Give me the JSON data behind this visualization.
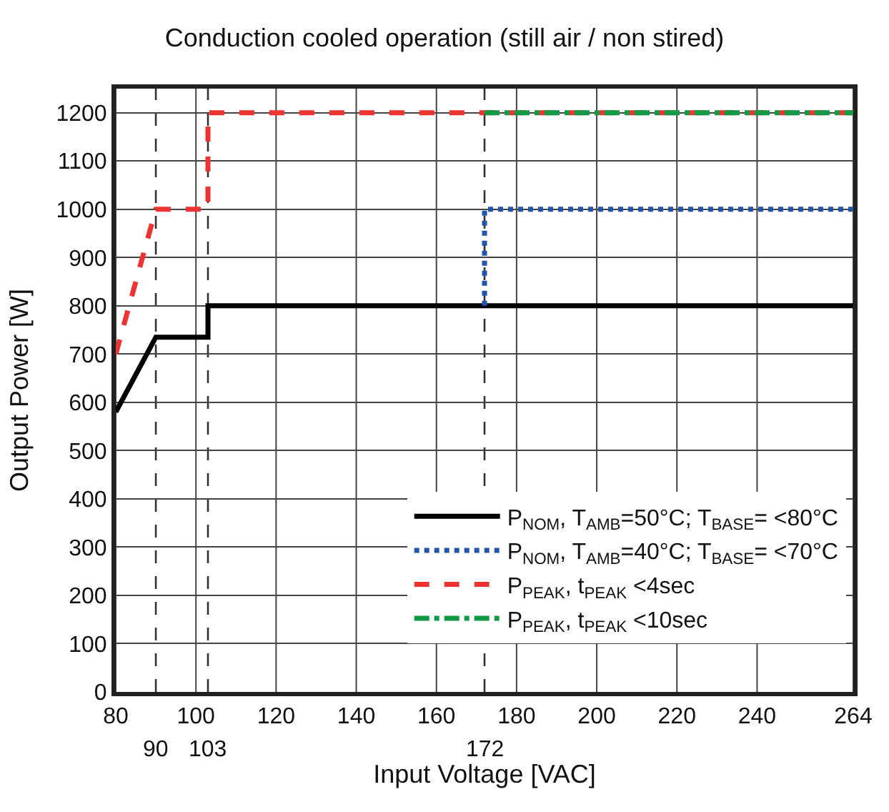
{
  "chart_data": {
    "type": "line",
    "title": "Conduction cooled operation (still air / non stired)",
    "xlabel": "Input Voltage [VAC]",
    "ylabel": "Output Power [W]",
    "xlim": [
      80,
      264
    ],
    "xticks": [
      80,
      100,
      120,
      140,
      160,
      180,
      200,
      220,
      240,
      264
    ],
    "ylim": [
      0,
      1250
    ],
    "yticks": [
      0,
      100,
      200,
      300,
      400,
      500,
      600,
      700,
      800,
      900,
      1000,
      1100,
      1200
    ],
    "grid": true,
    "legend": "bottom right",
    "ref_lines": [
      {
        "axis": "x",
        "value": 90,
        "label": "90",
        "line_style": "dashed",
        "color": "#333333"
      },
      {
        "axis": "x",
        "value": 103,
        "label": "103",
        "line_style": "dashed",
        "color": "#333333"
      },
      {
        "axis": "x",
        "value": 172,
        "label": "172",
        "line_style": "dashed",
        "color": "#333333"
      }
    ],
    "series": [
      {
        "name": "P$_{NOM}$, T$_{AMB}$=50°C; T$_{BASE}$= <80°C",
        "color": "#000000",
        "line_style": "solid",
        "x": [
          80,
          90,
          103,
          103,
          264
        ],
        "values": [
          580,
          735,
          735,
          800,
          800
        ]
      },
      {
        "name": "P$_{NOM}$, T$_{AMB}$=40°C; T$_{BASE}$= <70°C",
        "color": "#2255aa",
        "line_style": "dotted",
        "x": [
          172,
          172,
          264
        ],
        "values": [
          800,
          1000,
          1000
        ]
      },
      {
        "name": "P$_{PEAK}$, t$_{PEAK}$ <4sec",
        "color": "#ee3333",
        "line_style": "dashed",
        "x": [
          80,
          90,
          103,
          103,
          264
        ],
        "values": [
          700,
          1000,
          1000,
          1200,
          1200
        ]
      },
      {
        "name": "P$_{PEAK}$, t$_{PEAK}$ <10sec",
        "color": "#119944",
        "line_style": "dashdot",
        "x": [
          172,
          264
        ],
        "values": [
          1200,
          1200
        ]
      }
    ]
  }
}
